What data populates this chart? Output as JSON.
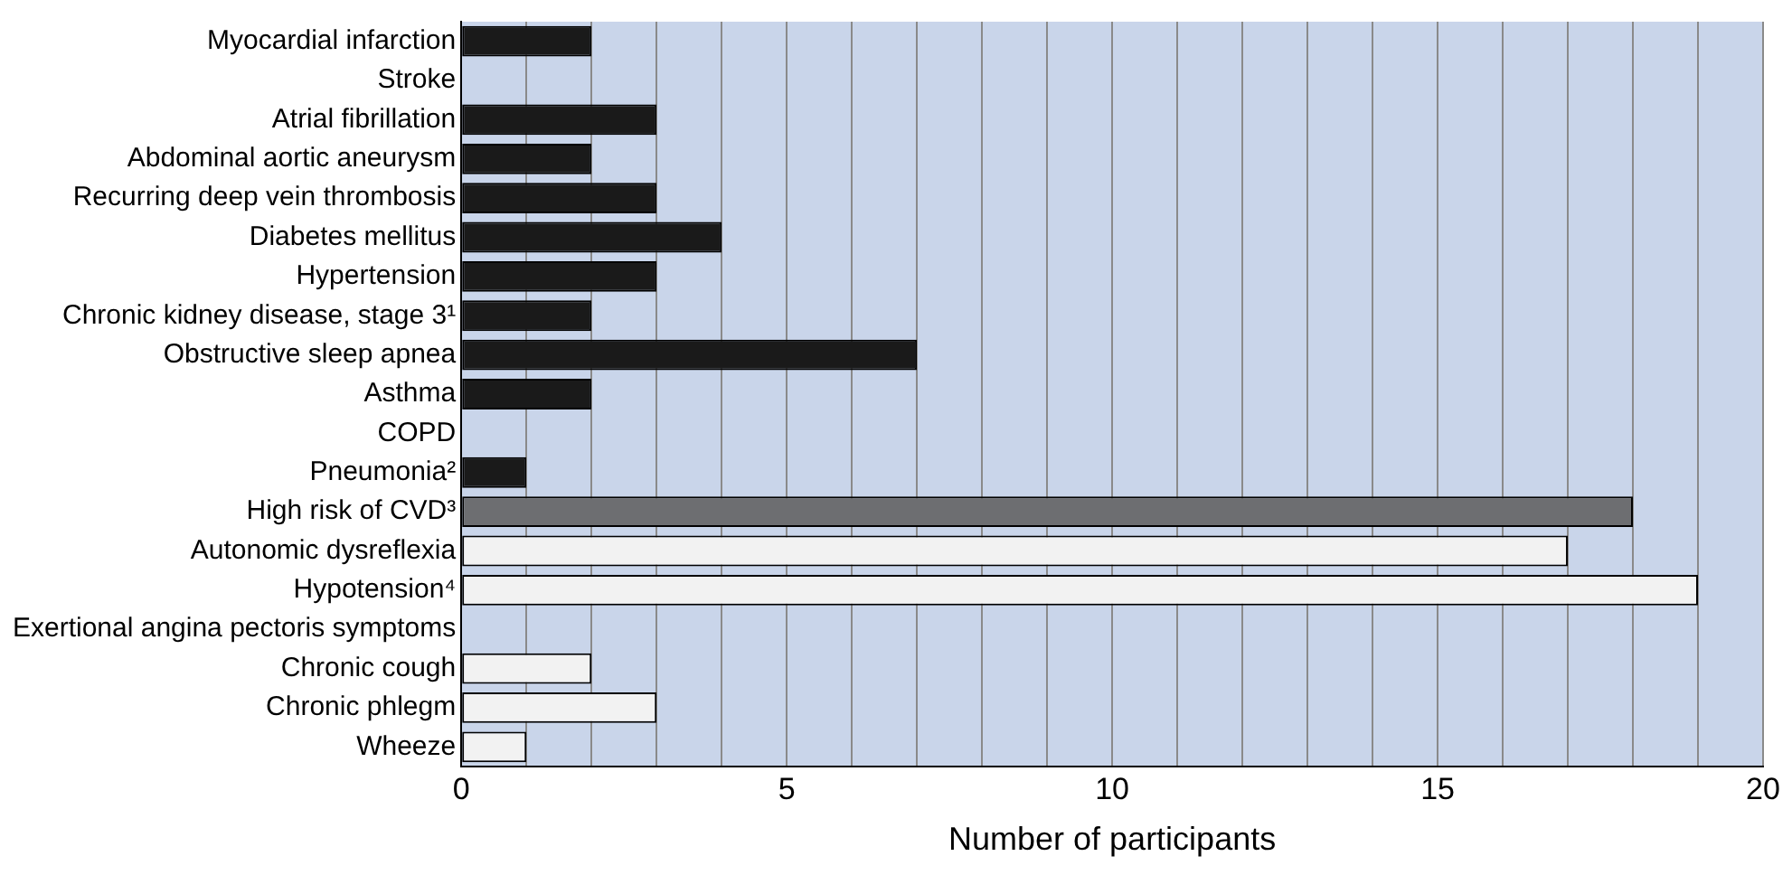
{
  "chart_data": {
    "type": "bar",
    "orientation": "horizontal",
    "xlabel": "Number of participants",
    "categories": [
      "Myocardial infarction",
      "Stroke",
      "Atrial fibrillation",
      "Abdominal aortic aneurysm",
      "Recurring deep vein thrombosis",
      "Diabetes mellitus",
      "Hypertension",
      "Chronic kidney disease, stage 3¹",
      "Obstructive sleep apnea",
      "Asthma",
      "COPD",
      "Pneumonia²",
      "High risk of CVD³",
      "Autonomic dysreflexia",
      "Hypotension⁴",
      "Exertional angina pectoris symptoms",
      "Chronic cough",
      "Chronic phlegm",
      "Wheeze"
    ],
    "values": [
      2,
      0,
      3,
      2,
      3,
      4,
      3,
      2,
      7,
      2,
      0,
      1,
      18,
      17,
      19,
      0,
      2,
      3,
      1
    ],
    "colors": [
      "#1a1a1a",
      "#1a1a1a",
      "#1a1a1a",
      "#1a1a1a",
      "#1a1a1a",
      "#1a1a1a",
      "#1a1a1a",
      "#1a1a1a",
      "#1a1a1a",
      "#1a1a1a",
      "#1a1a1a",
      "#1a1a1a",
      "#6d6e71",
      "#f2f2f2",
      "#f2f2f2",
      "#f2f2f2",
      "#f2f2f2",
      "#f2f2f2",
      "#f2f2f2"
    ],
    "xlim": [
      0,
      20
    ],
    "xticks": [
      0,
      {
        "value": 1,
        "label": null
      },
      {
        "value": 2,
        "label": null
      },
      {
        "value": 3,
        "label": null
      },
      {
        "value": 4,
        "label": null
      },
      5,
      {
        "value": 6,
        "label": null
      },
      {
        "value": 7,
        "label": null
      },
      {
        "value": 8,
        "label": null
      },
      {
        "value": 9,
        "label": null
      },
      10,
      {
        "value": 11,
        "label": null
      },
      {
        "value": 12,
        "label": null
      },
      {
        "value": 13,
        "label": null
      },
      {
        "value": 14,
        "label": null
      },
      15,
      {
        "value": 16,
        "label": null
      },
      {
        "value": 17,
        "label": null
      },
      {
        "value": 18,
        "label": null
      },
      {
        "value": 19,
        "label": null
      },
      20
    ],
    "grid": "x",
    "legend": false
  }
}
